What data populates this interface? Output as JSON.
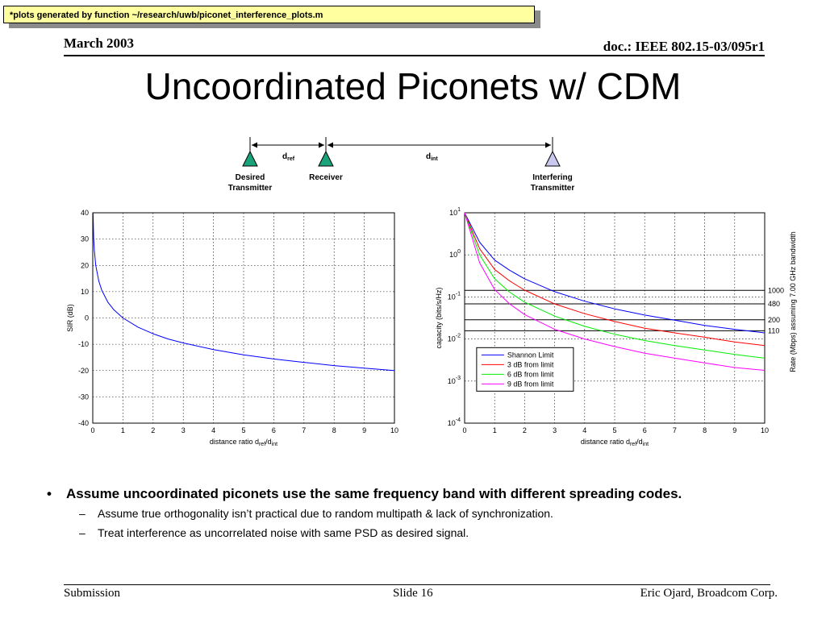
{
  "note": "*plots generated by function ~/research/uwb/piconet_interference_plots.m",
  "header": {
    "date": "March 2003",
    "doc": "doc.: IEEE 802.15-03/095r1"
  },
  "title": "Uncoordinated Piconets w/ CDM",
  "diagram": {
    "d_ref": {
      "base": "d",
      "sub": "ref"
    },
    "d_int": {
      "base": "d",
      "sub": "int"
    },
    "desired_line1": "Desired",
    "desired_line2": "Transmitter",
    "receiver": "Receiver",
    "interfering_line1": "Interfering",
    "interfering_line2": "Transmitter",
    "colors": {
      "desired": "#1aa37a",
      "receiver": "#1aa37a",
      "interfering": "#c8c8f0"
    }
  },
  "bullets": {
    "main": "Assume uncoordinated piconets use the same frequency band with different spreading codes.",
    "subs": [
      "Assume true orthogonality isn’t practical due to random multipath & lack of synchronization.",
      "Treat interference as uncorrelated noise with same PSD as desired signal."
    ]
  },
  "footer": {
    "left": "Submission",
    "center": "Slide 16",
    "right": "Eric Ojard, Broadcom Corp."
  },
  "chart_data": [
    {
      "type": "line",
      "xlabel": {
        "base": "distance ratio d",
        "sub1": "ref",
        "mid": "/d",
        "sub2": "int"
      },
      "ylabel": "SIR (dB)",
      "xlim": [
        0,
        10
      ],
      "ylim": [
        -40,
        40
      ],
      "xticks": [
        0,
        1,
        2,
        3,
        4,
        5,
        6,
        7,
        8,
        9,
        10
      ],
      "yticks": [
        40,
        30,
        20,
        10,
        0,
        -10,
        -20,
        -30,
        -40
      ],
      "grid": true,
      "series": [
        {
          "color": "#0000ff",
          "x": [
            0.01,
            0.03,
            0.05,
            0.1,
            0.2,
            0.3,
            0.5,
            0.7,
            1,
            1.5,
            2,
            2.5,
            3,
            4,
            5,
            6,
            7,
            8,
            9,
            10
          ],
          "y": [
            40,
            30.5,
            26,
            20,
            14,
            10.5,
            6,
            3.1,
            0,
            -3.5,
            -6,
            -8,
            -9.5,
            -12,
            -14,
            -15.6,
            -16.9,
            -18.1,
            -19.1,
            -20
          ]
        }
      ]
    },
    {
      "type": "line",
      "xlabel": {
        "base": "distance ratio d",
        "sub1": "ref",
        "mid": "/d",
        "sub2": "int"
      },
      "ylabel": "capacity (bits/s/Hz)",
      "y2label": "Rate (Mbps) assuming  7.00 GHz bandwidth",
      "xlim": [
        0,
        10
      ],
      "ylim": [
        0.0001,
        10
      ],
      "yscale": "log",
      "xticks": [
        0,
        1,
        2,
        3,
        4,
        5,
        6,
        7,
        8,
        9,
        10
      ],
      "yticks": [
        {
          "base": "10",
          "exp": "1"
        },
        {
          "base": "10",
          "exp": "0"
        },
        {
          "base": "10",
          "exp": "-1"
        },
        {
          "base": "10",
          "exp": "-2"
        },
        {
          "base": "10",
          "exp": "-3"
        },
        {
          "base": "10",
          "exp": "-4"
        }
      ],
      "grid": true,
      "legend_position": "bottom-right",
      "rate_lines": [
        {
          "label": "1000",
          "value": 0.1429
        },
        {
          "label": "480",
          "value": 0.0686
        },
        {
          "label": "200",
          "value": 0.0286
        },
        {
          "label": "110",
          "value": 0.0157
        }
      ],
      "series": [
        {
          "name": "Shannon Limit",
          "color": "#0000ff",
          "x": [
            0,
            0.5,
            1,
            1.5,
            2,
            3,
            4,
            5,
            6,
            7,
            8,
            9,
            10
          ],
          "y": [
            10,
            2.0,
            0.75,
            0.43,
            0.27,
            0.133,
            0.079,
            0.052,
            0.037,
            0.028,
            0.021,
            0.017,
            0.014
          ]
        },
        {
          "name": "3 dB from limit",
          "color": "#ff0000",
          "x": [
            0,
            0.5,
            1,
            1.5,
            2,
            3,
            4,
            5,
            6,
            7,
            8,
            9,
            10
          ],
          "y": [
            10,
            1.4,
            0.45,
            0.24,
            0.145,
            0.068,
            0.04,
            0.026,
            0.018,
            0.014,
            0.011,
            0.0085,
            0.007
          ]
        },
        {
          "name": "6 dB from limit",
          "color": "#00ee00",
          "x": [
            0,
            0.5,
            1,
            1.5,
            2,
            3,
            4,
            5,
            6,
            7,
            8,
            9,
            10
          ],
          "y": [
            10,
            1.0,
            0.27,
            0.13,
            0.075,
            0.035,
            0.02,
            0.013,
            0.0092,
            0.007,
            0.0055,
            0.0043,
            0.0035
          ]
        },
        {
          "name": "9 dB from limit",
          "color": "#ff00ff",
          "x": [
            0,
            0.5,
            1,
            1.5,
            2,
            3,
            4,
            5,
            6,
            7,
            8,
            9,
            10
          ],
          "y": [
            10,
            0.65,
            0.15,
            0.068,
            0.038,
            0.017,
            0.01,
            0.0066,
            0.0046,
            0.0035,
            0.0027,
            0.0021,
            0.0018
          ]
        }
      ]
    }
  ]
}
